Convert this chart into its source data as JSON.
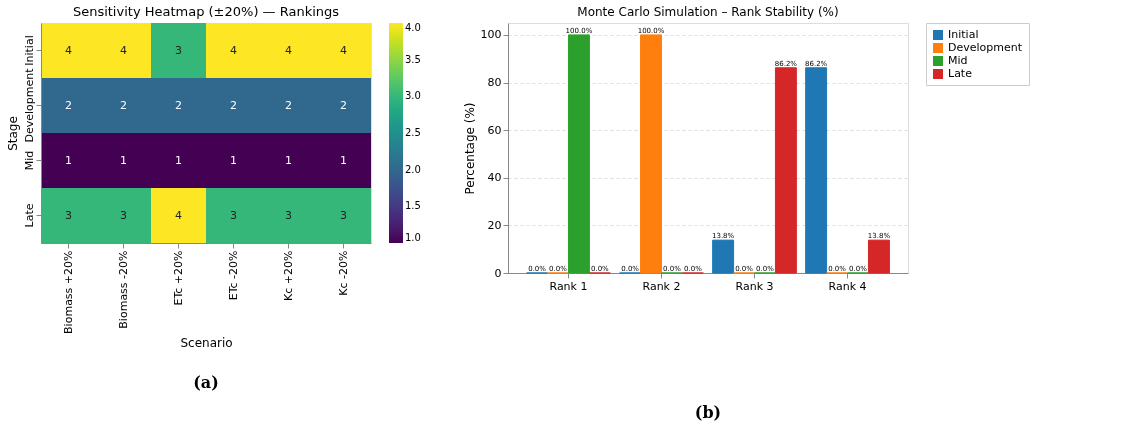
{
  "chart_data": [
    {
      "type": "heatmap",
      "title": "Sensitivity Heatmap (±20%) — Rankings",
      "xlabel": "Scenario",
      "ylabel": "Stage",
      "categories": [
        "Biomass +20%",
        "Biomass -20%",
        "ETc +20%",
        "ETc -20%",
        "Kc +20%",
        "Kc -20%"
      ],
      "y_categories": [
        "Initial",
        "Development",
        "Mid",
        "Late"
      ],
      "cells": [
        [
          4,
          4,
          3,
          4,
          4,
          4
        ],
        [
          2,
          2,
          2,
          2,
          2,
          2
        ],
        [
          1,
          1,
          1,
          1,
          1,
          1
        ],
        [
          3,
          3,
          4,
          3,
          3,
          3
        ]
      ],
      "clim": [
        1,
        4
      ],
      "cticks": [
        {
          "value": 1,
          "label": "1.0"
        },
        {
          "value": 1.5,
          "label": "1.5"
        },
        {
          "value": 2,
          "label": "2.0"
        },
        {
          "value": 2.5,
          "label": "2.5"
        },
        {
          "value": 3,
          "label": "3.0"
        },
        {
          "value": 3.5,
          "label": "3.5"
        },
        {
          "value": 4,
          "label": "4.0"
        }
      ],
      "data_labels": true,
      "annotations": [
        "(a)"
      ]
    },
    {
      "type": "bar",
      "title": "Monte Carlo Simulation – Rank Stability (%)",
      "ylabel": "Percentage (%)",
      "categories": [
        "Rank 1",
        "Rank 2",
        "Rank 3",
        "Rank 4"
      ],
      "series": [
        {
          "name": "Initial",
          "color": "#1f77b4",
          "values": [
            0,
            0,
            13.8,
            86.2
          ],
          "value_labels": [
            "0.0%",
            "0.0%",
            "13.8%",
            "86.2%"
          ]
        },
        {
          "name": "Development",
          "color": "#ff7f0e",
          "values": [
            0,
            100,
            0,
            0
          ],
          "value_labels": [
            "0.0%",
            "100.0%",
            "0.0%",
            "0.0%"
          ]
        },
        {
          "name": "Mid",
          "color": "#2ca02c",
          "values": [
            100,
            0,
            0,
            0
          ],
          "value_labels": [
            "100.0%",
            "0.0%",
            "0.0%",
            "0.0%"
          ]
        },
        {
          "name": "Late",
          "color": "#d62728",
          "values": [
            0,
            0,
            86.2,
            13.8
          ],
          "value_labels": [
            "0.0%",
            "0.0%",
            "86.2%",
            "13.8%"
          ]
        }
      ],
      "ylim": [
        0,
        105
      ],
      "yticks": [
        0,
        20,
        40,
        60,
        80,
        100
      ],
      "grid": "y",
      "legend": "top right",
      "annotations": [
        "(b)"
      ]
    }
  ]
}
